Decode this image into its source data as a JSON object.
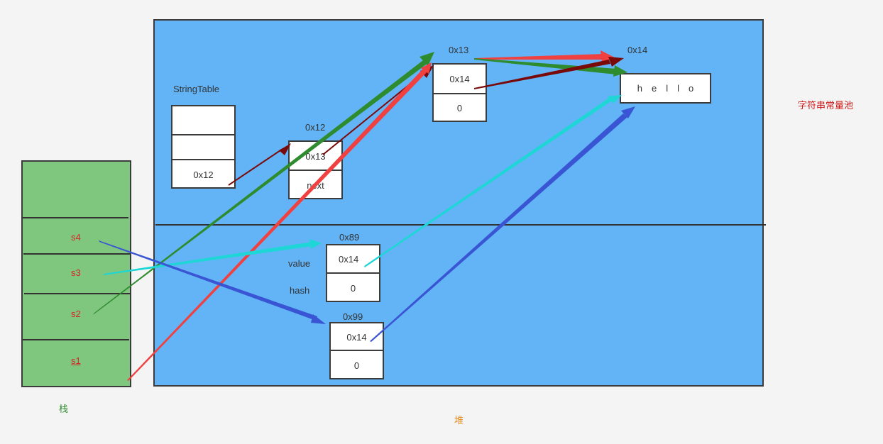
{
  "labels": {
    "string_table": "StringTable",
    "stack": "栈",
    "heap": "堆",
    "string_pool": "字符串常量池",
    "value": "value",
    "hash": "hash"
  },
  "string_table": {
    "cells": [
      "",
      "",
      "0x12"
    ]
  },
  "node_0x12": {
    "address": "0x12",
    "cells": [
      "0x13",
      "next"
    ]
  },
  "node_0x13": {
    "address": "0x13",
    "cells": [
      "0x14",
      "0"
    ]
  },
  "node_0x14": {
    "address": "0x14",
    "text": "hello"
  },
  "obj_0x89": {
    "address": "0x89",
    "cells": [
      "0x14",
      "0"
    ]
  },
  "obj_0x99": {
    "address": "0x99",
    "cells": [
      "0x14",
      "0"
    ]
  },
  "stack_vars": [
    "s4",
    "s3",
    "s2",
    "s1"
  ],
  "colors": {
    "heap_fill": "#62b4f6",
    "stack_fill": "#7fc77e",
    "red_arrow": "#f04040",
    "dark_red_arrow": "#7a0a0a",
    "green_arrow": "#2e8b2e",
    "cyan_arrow": "#1ed6d6",
    "blue_arrow": "#3a55d4",
    "stack_label_color": "#2e8b2e",
    "heap_label_color": "#e08a1e",
    "pool_label_color": "#d01818"
  }
}
